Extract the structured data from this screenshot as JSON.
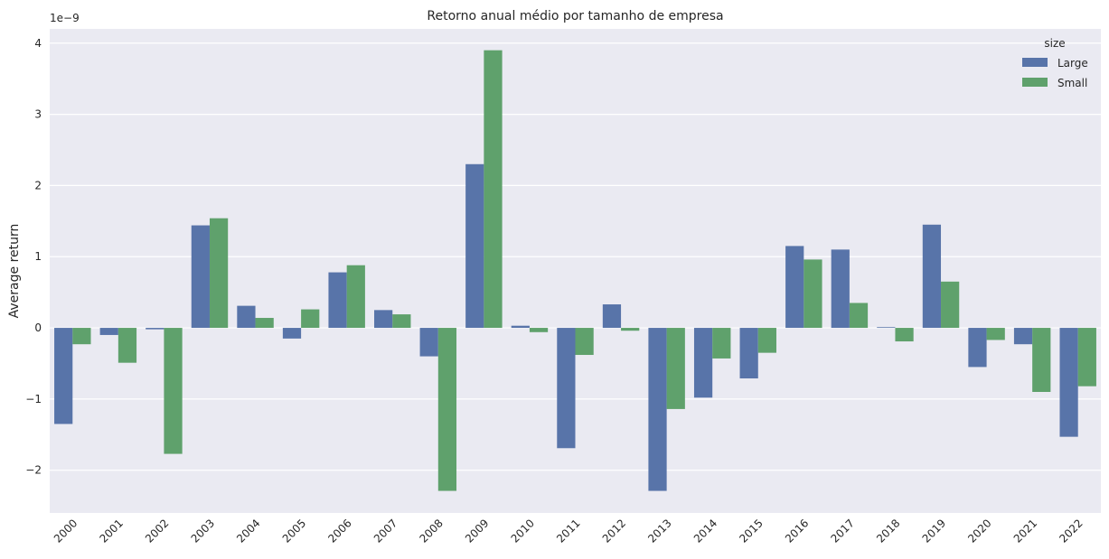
{
  "chart_data": {
    "type": "bar",
    "title": "Retorno anual médio por tamanho de empresa",
    "xlabel": "",
    "ylabel": "Average return",
    "y_offset_label": "1e−9",
    "ylim": [
      -2.6,
      4.2
    ],
    "yticks": [
      -2,
      -1,
      0,
      1,
      2,
      3,
      4
    ],
    "ytick_labels": [
      "−2",
      "−1",
      "0",
      "1",
      "2",
      "3",
      "4"
    ],
    "grid": true,
    "legend": {
      "title": "size",
      "placement": "top-right"
    },
    "categories": [
      "2000",
      "2001",
      "2002",
      "2003",
      "2004",
      "2005",
      "2006",
      "2007",
      "2008",
      "2009",
      "2010",
      "2011",
      "2012",
      "2013",
      "2014",
      "2015",
      "2016",
      "2017",
      "2018",
      "2019",
      "2020",
      "2021",
      "2022"
    ],
    "series": [
      {
        "name": "Large",
        "color": "#5874a9",
        "values": [
          -1.35,
          -0.1,
          -0.02,
          1.44,
          0.31,
          -0.15,
          0.78,
          0.25,
          -0.4,
          2.3,
          0.03,
          -1.69,
          0.33,
          -2.29,
          -0.98,
          -0.71,
          1.15,
          1.1,
          0.01,
          1.45,
          -0.55,
          -0.23,
          -1.53
        ]
      },
      {
        "name": "Small",
        "color": "#5fa16c",
        "values": [
          -0.23,
          -0.49,
          -1.77,
          1.54,
          0.14,
          0.26,
          0.88,
          0.19,
          -2.29,
          3.9,
          -0.06,
          -0.38,
          -0.04,
          -1.14,
          -0.43,
          -0.35,
          0.96,
          0.35,
          -0.19,
          0.65,
          -0.17,
          -0.9,
          -0.82
        ]
      }
    ]
  }
}
